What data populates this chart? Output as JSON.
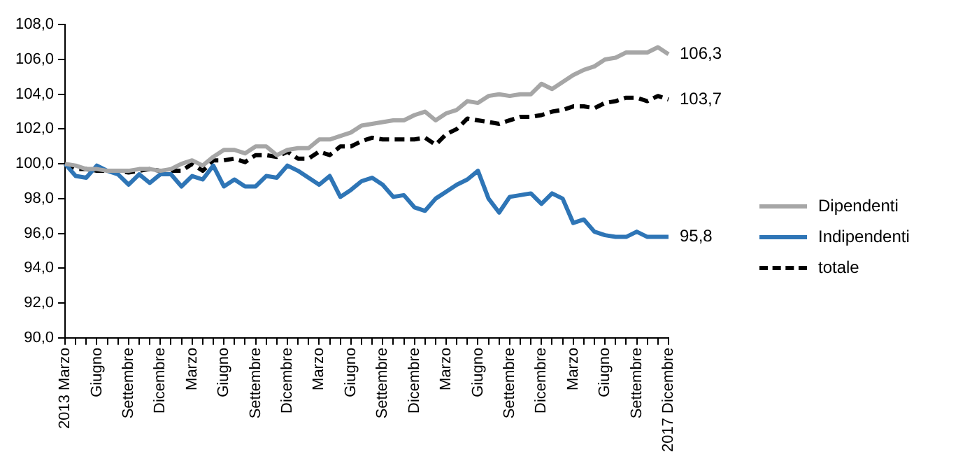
{
  "chart_data": {
    "type": "line",
    "categories": [
      "2013 Marzo",
      null,
      null,
      "Giugno",
      null,
      null,
      "Settembre",
      null,
      null,
      "Dicembre",
      null,
      null,
      "Marzo",
      null,
      null,
      "Giugno",
      null,
      null,
      "Settembre",
      null,
      null,
      "Dicembre",
      null,
      null,
      "Marzo",
      null,
      null,
      "Giugno",
      null,
      null,
      "Settembre",
      null,
      null,
      "Dicembre",
      null,
      null,
      "Marzo",
      null,
      null,
      "Giugno",
      null,
      null,
      "Settembre",
      null,
      null,
      "Dicembre",
      null,
      null,
      "Marzo",
      null,
      null,
      "Giugno",
      null,
      null,
      "Settembre",
      null,
      null,
      "2017 Dicembre"
    ],
    "series": [
      {
        "name": "Dipendenti",
        "color": "#a6a6a6",
        "line_style": "solid",
        "values": [
          100.0,
          99.9,
          99.7,
          99.7,
          99.6,
          99.6,
          99.6,
          99.7,
          99.7,
          99.6,
          99.7,
          100.0,
          100.2,
          99.9,
          100.4,
          100.8,
          100.8,
          100.6,
          101.0,
          101.0,
          100.5,
          100.8,
          100.9,
          100.9,
          101.4,
          101.4,
          101.6,
          101.8,
          102.2,
          102.3,
          102.4,
          102.5,
          102.5,
          102.8,
          103.0,
          102.5,
          102.9,
          103.1,
          103.6,
          103.5,
          103.9,
          104.0,
          103.9,
          104.0,
          104.0,
          104.6,
          104.3,
          104.7,
          105.1,
          105.4,
          105.6,
          106.0,
          106.1,
          106.4,
          106.4,
          106.4,
          106.7,
          106.3
        ],
        "value_labels": [
          null,
          null,
          null,
          null,
          null,
          null,
          null,
          null,
          null,
          null,
          null,
          null,
          null,
          null,
          null,
          null,
          null,
          null,
          null,
          null,
          null,
          null,
          null,
          null,
          null,
          null,
          null,
          null,
          null,
          null,
          null,
          null,
          null,
          null,
          null,
          null,
          null,
          null,
          null,
          null,
          null,
          null,
          null,
          null,
          null,
          null,
          null,
          null,
          null,
          null,
          null,
          null,
          null,
          null,
          null,
          null,
          null,
          "106,3"
        ]
      },
      {
        "name": "Indipendenti",
        "color": "#2e75b6",
        "line_style": "solid",
        "values": [
          100.0,
          99.3,
          99.2,
          99.9,
          99.6,
          99.4,
          98.8,
          99.4,
          98.9,
          99.4,
          99.4,
          98.7,
          99.3,
          99.1,
          99.9,
          98.7,
          99.1,
          98.7,
          98.7,
          99.3,
          99.2,
          99.9,
          99.6,
          99.2,
          98.8,
          99.3,
          98.1,
          98.5,
          99.0,
          99.2,
          98.8,
          98.1,
          98.2,
          97.5,
          97.3,
          98.0,
          98.4,
          98.8,
          99.1,
          99.6,
          98.0,
          97.2,
          98.1,
          98.2,
          98.3,
          97.7,
          98.3,
          98.0,
          96.6,
          96.8,
          96.1,
          95.9,
          95.8,
          95.8,
          96.1,
          95.8,
          95.8,
          95.8
        ],
        "value_labels": [
          null,
          null,
          null,
          null,
          null,
          null,
          null,
          null,
          null,
          null,
          null,
          null,
          null,
          null,
          null,
          null,
          null,
          null,
          null,
          null,
          null,
          null,
          null,
          null,
          null,
          null,
          null,
          null,
          null,
          null,
          null,
          null,
          null,
          null,
          null,
          null,
          null,
          null,
          null,
          null,
          null,
          null,
          null,
          null,
          null,
          null,
          null,
          null,
          null,
          null,
          null,
          null,
          null,
          null,
          null,
          null,
          null,
          "95,8"
        ]
      },
      {
        "name": "totale",
        "color": "#000000",
        "line_style": "dashed",
        "values": [
          100.0,
          99.7,
          99.7,
          99.6,
          99.6,
          99.6,
          99.5,
          99.6,
          99.7,
          99.6,
          99.6,
          99.6,
          100.0,
          99.6,
          100.2,
          100.2,
          100.3,
          100.1,
          100.5,
          100.5,
          100.4,
          100.7,
          100.3,
          100.3,
          100.7,
          100.5,
          101.0,
          101.0,
          101.3,
          101.5,
          101.4,
          101.4,
          101.4,
          101.4,
          101.5,
          101.1,
          101.7,
          102.0,
          102.6,
          102.5,
          102.4,
          102.3,
          102.5,
          102.7,
          102.7,
          102.8,
          103.0,
          103.1,
          103.3,
          103.3,
          103.2,
          103.5,
          103.6,
          103.8,
          103.8,
          103.6,
          103.9,
          103.7
        ],
        "value_labels": [
          null,
          null,
          null,
          null,
          null,
          null,
          null,
          null,
          null,
          null,
          null,
          null,
          null,
          null,
          null,
          null,
          null,
          null,
          null,
          null,
          null,
          null,
          null,
          null,
          null,
          null,
          null,
          null,
          null,
          null,
          null,
          null,
          null,
          null,
          null,
          null,
          null,
          null,
          null,
          null,
          null,
          null,
          null,
          null,
          null,
          null,
          null,
          null,
          null,
          null,
          null,
          null,
          null,
          null,
          null,
          null,
          null,
          "103,7"
        ]
      }
    ],
    "ylim": [
      90,
      108
    ],
    "yticks": [
      {
        "value": 90,
        "label": "90,0"
      },
      {
        "value": 92,
        "label": "92,0"
      },
      {
        "value": 94,
        "label": "94,0"
      },
      {
        "value": 96,
        "label": "96,0"
      },
      {
        "value": 98,
        "label": "98,0"
      },
      {
        "value": 100,
        "label": "100,0"
      },
      {
        "value": 102,
        "label": "102,0"
      },
      {
        "value": 104,
        "label": "104,0"
      },
      {
        "value": 106,
        "label": "106,0"
      },
      {
        "value": 108,
        "label": "108,0"
      }
    ],
    "grid": false,
    "legend": "right",
    "marker": "none"
  }
}
